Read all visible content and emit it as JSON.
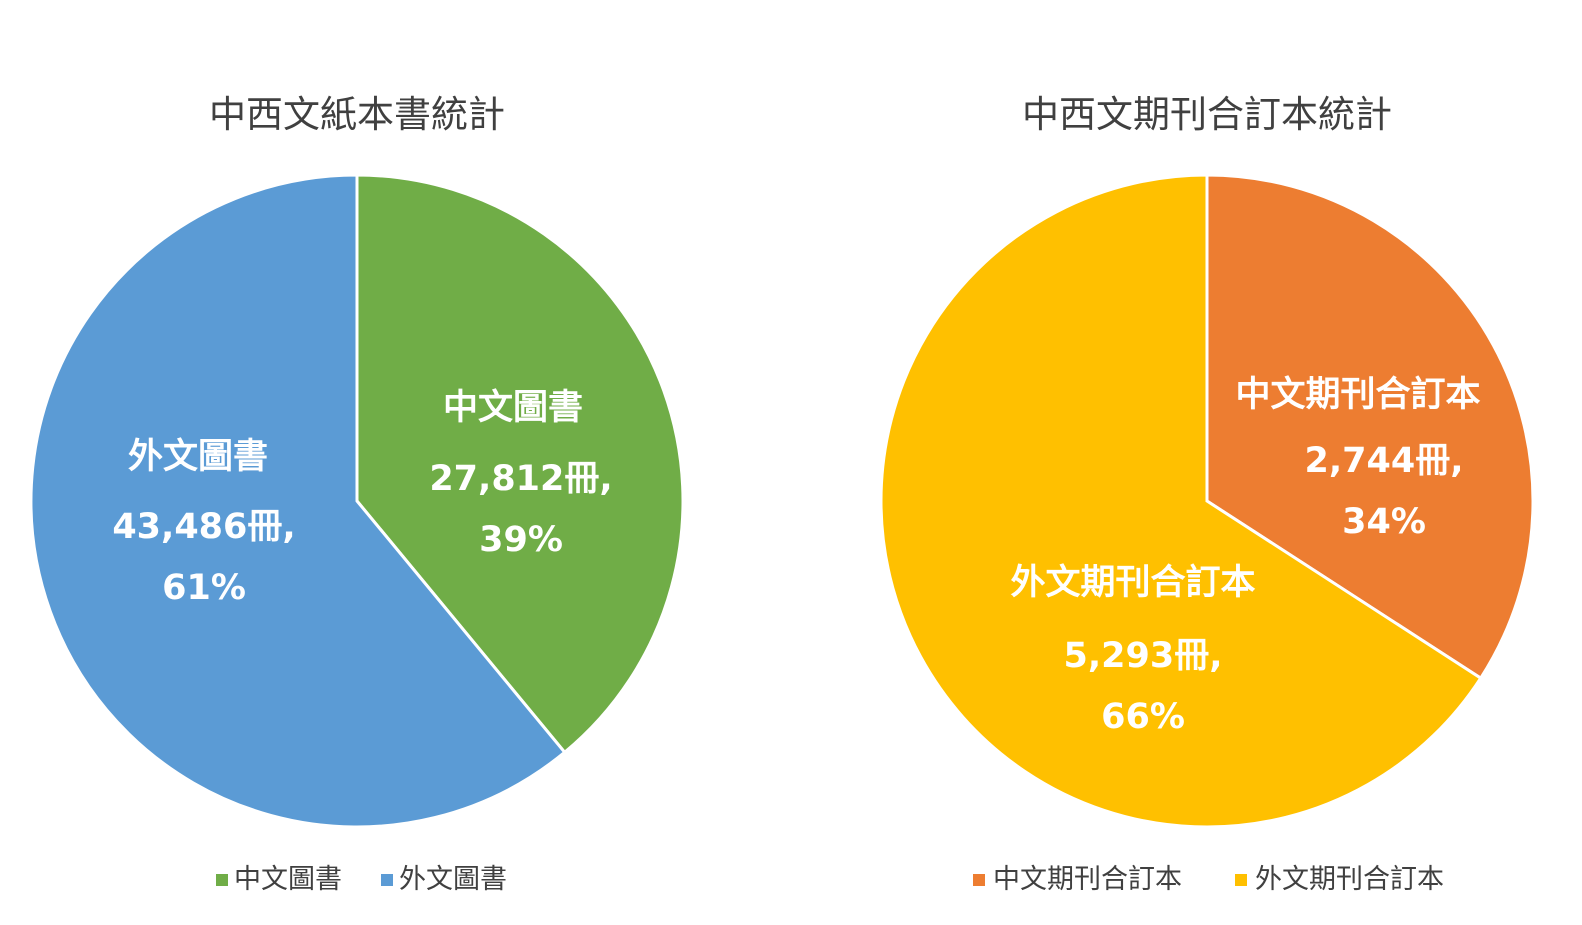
{
  "chart_data": [
    {
      "type": "pie",
      "title": "中西文紙本書統計",
      "legend_position": "bottom",
      "series": [
        {
          "name": "中文圖書",
          "value": 27812,
          "value_label": "27,812冊,",
          "percent_label": "39%",
          "color": "#70AD47"
        },
        {
          "name": "外文圖書",
          "value": 43486,
          "value_label": "43,486冊,",
          "percent_label": "61%",
          "color": "#5B9BD5"
        }
      ]
    },
    {
      "type": "pie",
      "title": "中西文期刊合訂本統計",
      "legend_position": "bottom",
      "series": [
        {
          "name": "中文期刊合訂本",
          "value": 2744,
          "value_label": "2,744冊,",
          "percent_label": "34%",
          "color": "#ED7D31"
        },
        {
          "name": "外文期刊合訂本",
          "value": 5293,
          "value_label": "5,293冊,",
          "percent_label": "66%",
          "color": "#FFC000"
        }
      ]
    }
  ]
}
